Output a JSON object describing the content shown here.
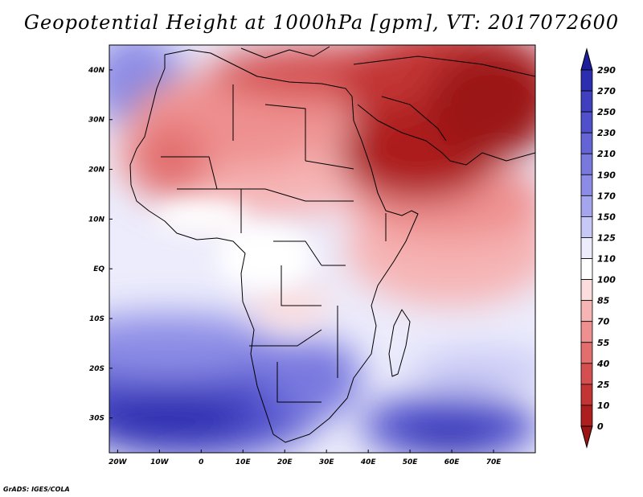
{
  "title": "Geopotential Height at 1000hPa [gpm], VT: 2017072600",
  "credit": "GrADS: IGES/COLA",
  "map": {
    "lon_range": [
      -22,
      80
    ],
    "lat_range": [
      -37,
      45
    ],
    "x_ticks": [
      {
        "lon": -20,
        "label": "20W"
      },
      {
        "lon": -10,
        "label": "10W"
      },
      {
        "lon": 0,
        "label": "0"
      },
      {
        "lon": 10,
        "label": "10E"
      },
      {
        "lon": 20,
        "label": "20E"
      },
      {
        "lon": 30,
        "label": "30E"
      },
      {
        "lon": 40,
        "label": "40E"
      },
      {
        "lon": 50,
        "label": "50E"
      },
      {
        "lon": 60,
        "label": "60E"
      },
      {
        "lon": 70,
        "label": "70E"
      }
    ],
    "y_ticks": [
      {
        "lat": 40,
        "label": "40N"
      },
      {
        "lat": 30,
        "label": "30N"
      },
      {
        "lat": 20,
        "label": "20N"
      },
      {
        "lat": 10,
        "label": "10N"
      },
      {
        "lat": 0,
        "label": "EQ"
      },
      {
        "lat": -10,
        "label": "10S"
      },
      {
        "lat": -20,
        "label": "20S"
      },
      {
        "lat": -30,
        "label": "30S"
      }
    ]
  },
  "colorbar": {
    "levels": [
      "290",
      "270",
      "250",
      "230",
      "210",
      "190",
      "170",
      "150",
      "125",
      "110",
      "100",
      "85",
      "70",
      "55",
      "40",
      "25",
      "10",
      "0"
    ],
    "colors": [
      "#1e1e9c",
      "#2d2daf",
      "#3f3fbf",
      "#5050cc",
      "#6464d6",
      "#7878df",
      "#8c8ce6",
      "#a5a5ee",
      "#c8c8f6",
      "#ececfc",
      "#ffffff",
      "#fcdcdc",
      "#f6b4b4",
      "#ef9090",
      "#e26e6e",
      "#d45050",
      "#c33434",
      "#ad1e1e",
      "#9b1414"
    ]
  },
  "field": {
    "high_color": "#9b1414",
    "low_color": "#2d2daf",
    "neutral_color": "#ffffff"
  }
}
